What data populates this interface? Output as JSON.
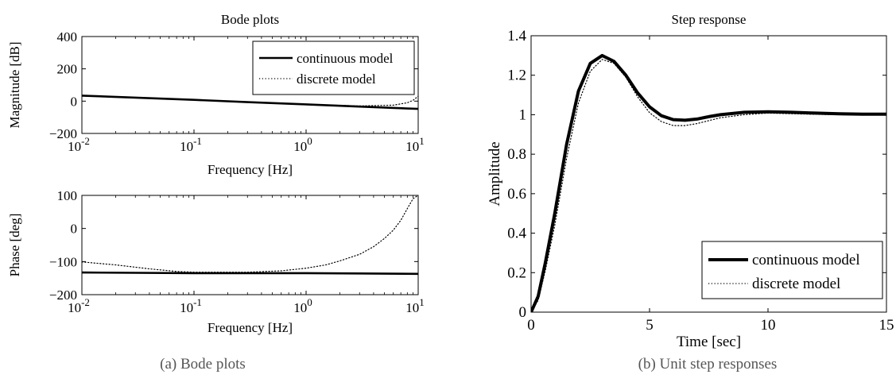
{
  "captions": {
    "a": "(a)  Bode plots",
    "b": "(b)  Unit step responses"
  },
  "chart_data": [
    {
      "id": "magnitude",
      "type": "line",
      "title": "Bode plots",
      "xlabel": "Frequency [Hz]",
      "ylabel": "Magnitude [dB]",
      "xscale": "log",
      "xlim": [
        0.01,
        10
      ],
      "ylim": [
        -200,
        400
      ],
      "xticks": [
        0.01,
        0.1,
        1,
        10
      ],
      "xtick_labels": [
        [
          "10",
          "-2"
        ],
        [
          "10",
          "-1"
        ],
        [
          "10",
          "0"
        ],
        [
          "10",
          "1"
        ]
      ],
      "yticks": [
        -200,
        0,
        200,
        400
      ],
      "ytick_labels": [
        "−200",
        "0",
        "200",
        "400"
      ],
      "legend": {
        "position": "top-right",
        "entries": [
          "continuous model",
          "discrete model"
        ]
      },
      "series": [
        {
          "name": "continuous model",
          "style": "solid",
          "x": [
            0.01,
            0.03,
            0.1,
            0.3,
            1,
            3,
            10
          ],
          "y": [
            34,
            22,
            8,
            -6,
            -20,
            -34,
            -48
          ]
        },
        {
          "name": "discrete model",
          "style": "dotted",
          "x": [
            0.01,
            0.03,
            0.1,
            0.3,
            1,
            3,
            6,
            8,
            9,
            10
          ],
          "y": [
            34,
            22,
            8,
            -6,
            -20,
            -30,
            -25,
            -10,
            5,
            30
          ]
        }
      ]
    },
    {
      "id": "phase",
      "type": "line",
      "title": "",
      "xlabel": "Frequency [Hz]",
      "ylabel": "Phase [deg]",
      "xscale": "log",
      "xlim": [
        0.01,
        10
      ],
      "ylim": [
        -200,
        100
      ],
      "xticks": [
        0.01,
        0.1,
        1,
        10
      ],
      "xtick_labels": [
        [
          "10",
          "-2"
        ],
        [
          "10",
          "-1"
        ],
        [
          "10",
          "0"
        ],
        [
          "10",
          "1"
        ]
      ],
      "yticks": [
        -200,
        -100,
        0,
        100
      ],
      "ytick_labels": [
        "−200",
        "−100",
        "0",
        "100"
      ],
      "series": [
        {
          "name": "continuous model",
          "style": "solid",
          "x": [
            0.01,
            0.03,
            0.1,
            0.3,
            1,
            3,
            10
          ],
          "y": [
            -133,
            -134,
            -135,
            -135,
            -135,
            -136,
            -137
          ]
        },
        {
          "name": "discrete model",
          "style": "dotted",
          "x": [
            0.01,
            0.02,
            0.04,
            0.07,
            0.1,
            0.3,
            0.6,
            1,
            1.5,
            2,
            3,
            4,
            5,
            6,
            7,
            8,
            9,
            10
          ],
          "y": [
            -101,
            -110,
            -122,
            -130,
            -132,
            -132,
            -128,
            -120,
            -110,
            -98,
            -78,
            -55,
            -30,
            -5,
            25,
            60,
            90,
            100
          ]
        }
      ]
    },
    {
      "id": "step",
      "type": "line",
      "title": "Step response",
      "xlabel": "Time [sec]",
      "ylabel": "Amplitude",
      "xlim": [
        0,
        15
      ],
      "ylim": [
        0,
        1.4
      ],
      "xticks": [
        0,
        5,
        10,
        15
      ],
      "xtick_labels": [
        "0",
        "5",
        "10",
        "15"
      ],
      "yticks": [
        0,
        0.2,
        0.4,
        0.6,
        0.8,
        1,
        1.2,
        1.4
      ],
      "ytick_labels": [
        "0",
        "0.2",
        "0.4",
        "0.6",
        "0.8",
        "1",
        "1.2",
        "1.4"
      ],
      "legend": {
        "position": "bottom-right",
        "entries": [
          "continuous model",
          "discrete model"
        ]
      },
      "series": [
        {
          "name": "continuous model",
          "style": "solid",
          "x": [
            0,
            0.3,
            0.6,
            1,
            1.5,
            2,
            2.5,
            3,
            3.5,
            4,
            4.5,
            5,
            5.5,
            6,
            6.5,
            7,
            7.5,
            8,
            9,
            10,
            11,
            12,
            13,
            14,
            15
          ],
          "y": [
            0,
            0.08,
            0.25,
            0.5,
            0.85,
            1.12,
            1.26,
            1.3,
            1.27,
            1.2,
            1.11,
            1.04,
            0.995,
            0.975,
            0.972,
            0.978,
            0.99,
            1.0,
            1.012,
            1.015,
            1.012,
            1.008,
            1.005,
            1.003,
            1.003
          ]
        },
        {
          "name": "discrete model",
          "style": "dotted",
          "x": [
            0,
            0.3,
            0.6,
            1,
            1.5,
            2,
            2.5,
            3,
            3.5,
            4,
            4.5,
            5,
            5.5,
            6,
            6.5,
            7,
            7.5,
            8,
            9,
            10,
            11,
            12,
            13,
            14,
            15
          ],
          "y": [
            0,
            0.06,
            0.21,
            0.44,
            0.78,
            1.06,
            1.22,
            1.28,
            1.26,
            1.19,
            1.09,
            1.01,
            0.965,
            0.945,
            0.945,
            0.955,
            0.97,
            0.985,
            1.0,
            1.008,
            1.005,
            1.002,
            1.0,
            0.998,
            0.998
          ]
        }
      ]
    }
  ]
}
